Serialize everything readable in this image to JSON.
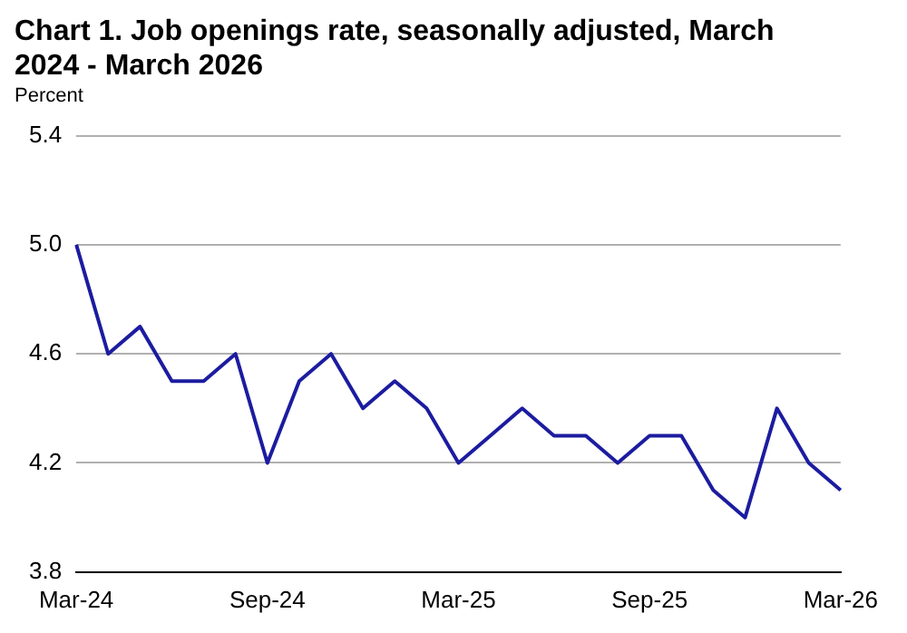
{
  "chart_data": {
    "type": "line",
    "title": "Chart 1. Job openings rate, seasonally adjusted, March 2024 - March 2026",
    "ylabel": "Percent",
    "categories": [
      "Mar-24",
      null,
      null,
      null,
      null,
      null,
      "Sep-24",
      null,
      null,
      null,
      null,
      null,
      "Mar-25",
      null,
      null,
      null,
      null,
      null,
      "Sep-25",
      null,
      null,
      null,
      null,
      null,
      "Mar-26"
    ],
    "series": [
      {
        "color": "#1c1ca0",
        "values": [
          5.0,
          4.6,
          4.7,
          4.5,
          4.5,
          4.6,
          4.2,
          4.5,
          4.6,
          4.4,
          4.5,
          4.4,
          4.2,
          4.3,
          4.4,
          4.3,
          4.3,
          4.2,
          4.3,
          4.3,
          4.1,
          4.0,
          4.4,
          4.2,
          4.1
        ]
      }
    ],
    "ylim": [
      3.8,
      5.4
    ],
    "yticks": [
      3.8,
      4.2,
      4.6,
      {
        "value": 5,
        "label": "5.0"
      },
      5.4
    ],
    "grid": "y",
    "legend": false,
    "marker": "none",
    "line_style": "solid"
  }
}
